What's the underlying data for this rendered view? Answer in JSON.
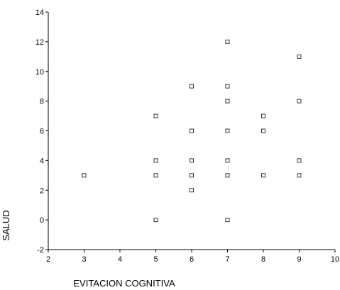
{
  "chart_data": {
    "type": "scatter",
    "title": "",
    "xlabel": "EVITACION COGNITIVA",
    "ylabel": "SALUD",
    "xlim": [
      2,
      10
    ],
    "ylim": [
      -2,
      14
    ],
    "xticks": [
      2,
      3,
      4,
      5,
      6,
      7,
      8,
      9,
      10
    ],
    "yticks": [
      -2,
      0,
      2,
      4,
      6,
      8,
      10,
      12,
      14
    ],
    "grid": false,
    "legend": "none",
    "marker": "hollow-square",
    "series": [
      {
        "points": [
          {
            "x": 3,
            "y": 3
          },
          {
            "x": 5,
            "y": 7
          },
          {
            "x": 5,
            "y": 4
          },
          {
            "x": 5,
            "y": 3
          },
          {
            "x": 5,
            "y": 0
          },
          {
            "x": 6,
            "y": 9
          },
          {
            "x": 6,
            "y": 6
          },
          {
            "x": 6,
            "y": 4
          },
          {
            "x": 6,
            "y": 3
          },
          {
            "x": 6,
            "y": 2
          },
          {
            "x": 7,
            "y": 12
          },
          {
            "x": 7,
            "y": 9
          },
          {
            "x": 7,
            "y": 8
          },
          {
            "x": 7,
            "y": 6
          },
          {
            "x": 7,
            "y": 4
          },
          {
            "x": 7,
            "y": 3
          },
          {
            "x": 7,
            "y": 0
          },
          {
            "x": 8,
            "y": 7
          },
          {
            "x": 8,
            "y": 6
          },
          {
            "x": 8,
            "y": 3
          },
          {
            "x": 9,
            "y": 11
          },
          {
            "x": 9,
            "y": 8
          },
          {
            "x": 9,
            "y": 4
          },
          {
            "x": 9,
            "y": 3
          }
        ]
      }
    ]
  }
}
